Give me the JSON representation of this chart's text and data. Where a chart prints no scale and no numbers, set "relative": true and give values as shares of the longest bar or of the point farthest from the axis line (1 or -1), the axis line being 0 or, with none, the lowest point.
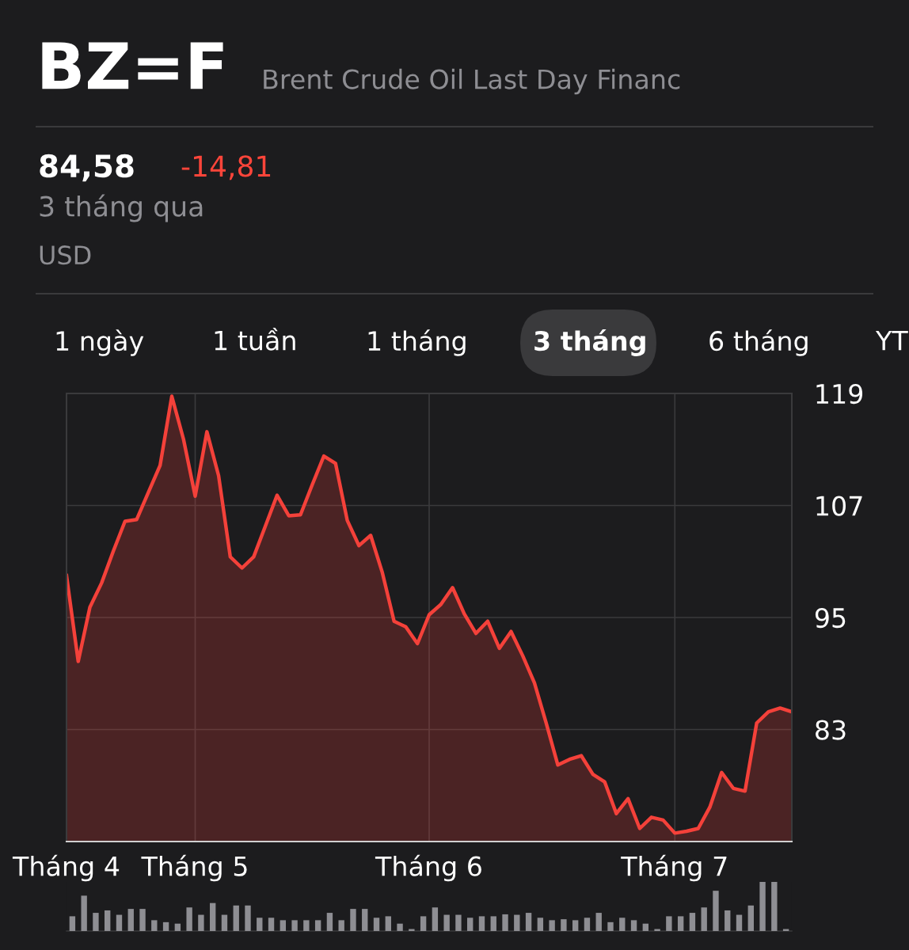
{
  "chart_data": [
    {
      "type": "area",
      "title": "BZ=F",
      "subtitle": "Brent Crude Oil Last Day Financ",
      "annotations": [
        "84,58",
        "-14,81",
        "3 tháng qua",
        "USD",
        "1 ngày",
        "1 tuần",
        "1 tháng",
        "3 tháng",
        "6 tháng",
        "YT"
      ],
      "categories": [
        "Tháng 4",
        null,
        null,
        null,
        null,
        null,
        null,
        null,
        null,
        null,
        null,
        "Tháng 5",
        null,
        null,
        null,
        null,
        null,
        null,
        null,
        null,
        null,
        null,
        null,
        null,
        null,
        null,
        null,
        null,
        null,
        null,
        null,
        "Tháng 6",
        null,
        null,
        null,
        null,
        null,
        null,
        null,
        null,
        null,
        null,
        null,
        null,
        null,
        null,
        null,
        null,
        null,
        null,
        null,
        null,
        "Tháng 7",
        null,
        null,
        null,
        null,
        null,
        null,
        null,
        null,
        null,
        null
      ],
      "series": [
        {
          "color": "#f4413a",
          "values": [
            99.5,
            90.3,
            96.1,
            98.7,
            102.1,
            105.3,
            105.5,
            108.4,
            111.3,
            118.7,
            114.1,
            108.0,
            114.9,
            110.2,
            101.5,
            100.3,
            101.5,
            104.8,
            108.1,
            105.9,
            106.0,
            109.2,
            112.3,
            111.5,
            105.4,
            102.7,
            103.8,
            99.8,
            94.6,
            94.0,
            92.2,
            95.3,
            96.4,
            98.2,
            95.4,
            93.3,
            94.6,
            91.7,
            93.5,
            90.9,
            88.0,
            83.7,
            79.2,
            79.8,
            80.2,
            78.2,
            77.4,
            74.0,
            75.6,
            72.4,
            73.6,
            73.3,
            71.9,
            72.1,
            72.4,
            74.7,
            78.4,
            76.7,
            76.4,
            83.7,
            84.9,
            85.3,
            84.9
          ]
        }
      ],
      "ylim": [
        71,
        119
      ],
      "yticks": [
        {
          "value": 71,
          "label": null
        },
        83,
        95,
        107,
        119
      ],
      "grid": true
    },
    {
      "type": "bar",
      "relative": true,
      "color": "#8e8e93",
      "categories": [
        null,
        null,
        null,
        null,
        null,
        null,
        null,
        null,
        null,
        null,
        null,
        null,
        null,
        null,
        null,
        null,
        null,
        null,
        null,
        null,
        null,
        null,
        null,
        null,
        null,
        null,
        null,
        null,
        null,
        null,
        null,
        null,
        null,
        null,
        null,
        null,
        null,
        null,
        null,
        null,
        null,
        null,
        null,
        null,
        null,
        null,
        null,
        null,
        null,
        null,
        null,
        null,
        null,
        null,
        null,
        null,
        null,
        null,
        null,
        null,
        null,
        null
      ],
      "values": [
        0.3,
        0.72,
        0.37,
        0.42,
        0.33,
        0.45,
        0.45,
        0.22,
        0.18,
        0.15,
        0.48,
        0.33,
        0.57,
        0.33,
        0.52,
        0.52,
        0.27,
        0.27,
        0.22,
        0.22,
        0.22,
        0.22,
        0.37,
        0.22,
        0.45,
        0.45,
        0.27,
        0.3,
        0.15,
        0.04,
        0.3,
        0.48,
        0.33,
        0.33,
        0.27,
        0.3,
        0.3,
        0.34,
        0.33,
        0.37,
        0.27,
        0.22,
        0.24,
        0.22,
        0.27,
        0.37,
        0.18,
        0.27,
        0.22,
        0.15,
        0.04,
        0.3,
        0.3,
        0.37,
        0.48,
        0.82,
        0.42,
        0.33,
        0.52,
        1,
        1,
        0.04
      ]
    }
  ]
}
